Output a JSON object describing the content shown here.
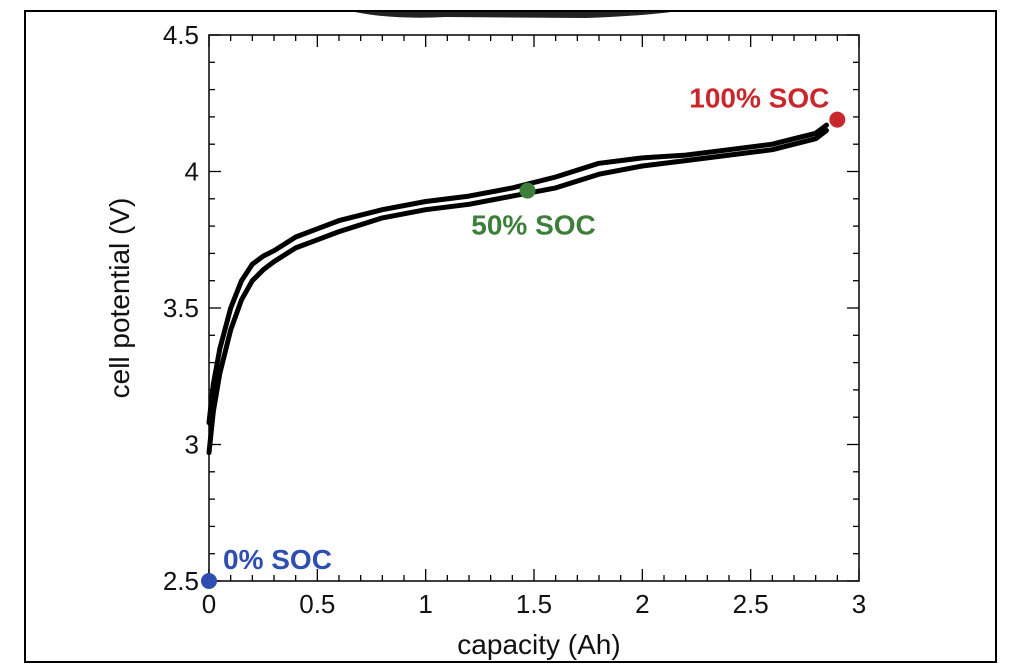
{
  "chart_data": {
    "type": "line",
    "title": "",
    "xlabel": "capacity (Ah)",
    "ylabel": "cell potential (V)",
    "xlim": [
      0,
      3
    ],
    "ylim": [
      2.5,
      4.5
    ],
    "x_ticks": [
      0,
      0.5,
      1,
      1.5,
      2,
      2.5,
      3
    ],
    "x_tick_labels": [
      "0",
      "0.5",
      "1",
      "1.5",
      "2",
      "2.5",
      "3"
    ],
    "y_ticks": [
      2.5,
      3,
      3.5,
      4,
      4.5
    ],
    "y_tick_labels": [
      "2.5",
      "3",
      "3.5",
      "4",
      "4.5"
    ],
    "grid": false,
    "series": [
      {
        "x": [
          0.0,
          0.02,
          0.05,
          0.1,
          0.15,
          0.2,
          0.25,
          0.3,
          0.4,
          0.5,
          0.6,
          0.8,
          1.0,
          1.2,
          1.4,
          1.6,
          1.8,
          2.0,
          2.2,
          2.4,
          2.6,
          2.7,
          2.8,
          2.85
        ],
        "values": [
          3.08,
          3.22,
          3.35,
          3.5,
          3.6,
          3.66,
          3.69,
          3.71,
          3.76,
          3.79,
          3.82,
          3.86,
          3.89,
          3.91,
          3.94,
          3.98,
          4.03,
          4.05,
          4.06,
          4.08,
          4.1,
          4.12,
          4.14,
          4.17
        ]
      },
      {
        "x": [
          0.0,
          0.02,
          0.05,
          0.1,
          0.15,
          0.2,
          0.25,
          0.3,
          0.4,
          0.5,
          0.6,
          0.8,
          1.0,
          1.2,
          1.4,
          1.6,
          1.8,
          2.0,
          2.2,
          2.4,
          2.6,
          2.7,
          2.8,
          2.85
        ],
        "values": [
          2.97,
          3.12,
          3.26,
          3.42,
          3.53,
          3.6,
          3.64,
          3.67,
          3.72,
          3.75,
          3.78,
          3.83,
          3.86,
          3.88,
          3.91,
          3.94,
          3.99,
          4.02,
          4.04,
          4.06,
          4.08,
          4.1,
          4.12,
          4.15
        ]
      }
    ],
    "markers": [
      {
        "label": "0% SOC",
        "x": 0.0,
        "y": 2.5,
        "color": "#2f4fb0"
      },
      {
        "label": "50% SOC",
        "x": 1.47,
        "y": 3.93,
        "color": "#3d7f3a"
      },
      {
        "label": "100% SOC",
        "x": 2.9,
        "y": 4.19,
        "color": "#c8282c"
      }
    ],
    "line_color": "#000000"
  }
}
